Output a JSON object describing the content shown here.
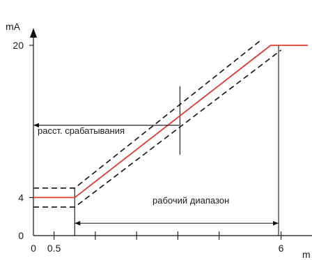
{
  "chart_data": {
    "type": "line",
    "y_unit": "mA",
    "x_unit_partial": "m",
    "x_ticks": [
      {
        "value": 0,
        "label": "0"
      },
      {
        "value": 0.5,
        "label": "0.5"
      },
      {
        "value": 1.5,
        "label": ""
      },
      {
        "value": 2.5,
        "label": ""
      },
      {
        "value": 3.5,
        "label": ""
      },
      {
        "value": 4.5,
        "label": ""
      },
      {
        "value": 6,
        "label": "6"
      }
    ],
    "y_ticks": [
      {
        "value": 0,
        "label": "0"
      },
      {
        "value": 4,
        "label": "4"
      },
      {
        "value": 20,
        "label": "20"
      }
    ],
    "xlim": [
      0,
      6.75
    ],
    "ylim": [
      0,
      20
    ],
    "series": [
      {
        "role": "output",
        "color": "#e03a2f",
        "style": "solid",
        "points": [
          [
            0,
            4
          ],
          [
            1.0,
            4
          ],
          [
            5.75,
            20
          ],
          [
            6.65,
            20
          ]
        ]
      },
      {
        "role": "upper-tolerance",
        "color": "#111111",
        "style": "dashed",
        "points": [
          [
            0,
            5
          ],
          [
            1.0,
            5
          ],
          [
            5.5,
            20.5
          ]
        ]
      },
      {
        "role": "lower-tolerance",
        "color": "#111111",
        "style": "dashed",
        "points": [
          [
            0,
            3
          ],
          [
            1.0,
            3
          ],
          [
            6.0,
            19.5
          ]
        ]
      }
    ],
    "annotations": {
      "switching_distance": {
        "label": "расст. срабатывания",
        "from_x": 0,
        "to_x": 3.55,
        "y": 11.6
      },
      "working_range": {
        "label": "рабочий диапазон",
        "from_x": 1.0,
        "to_x": 5.94,
        "y": 1.3
      }
    }
  }
}
